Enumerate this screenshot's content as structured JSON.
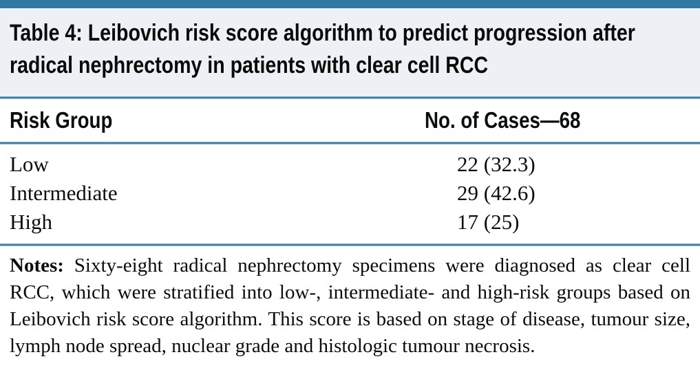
{
  "colors": {
    "top_bar": "#2e7aa2",
    "divider_rule": "#4080a6",
    "title_band_background": "#edf1f6",
    "text": "#0c0c0c"
  },
  "header": {
    "title": "Table 4:  Leibovich risk score algorithm to predict progression after radical nephrectomy in patients with clear cell RCC"
  },
  "table": {
    "columns": [
      {
        "label": "Risk Group"
      },
      {
        "label": "No. of Cases—68"
      }
    ],
    "rows": [
      {
        "risk_group": "Low",
        "cases": "22 (32.3)"
      },
      {
        "risk_group": "Intermediate",
        "cases": "29 (42.6)"
      },
      {
        "risk_group": "High",
        "cases": "17 (25)"
      }
    ]
  },
  "notes": {
    "label": "Notes:",
    "text": "Sixty-eight radical nephrectomy specimens were diagnosed as clear cell RCC, which were stratified into low-, intermediate- and high-risk groups based on Leibovich risk score algorithm. This score is based on stage of disease, tumour size, lymph node spread, nuclear grade and histologic tumour necrosis."
  },
  "chart_data": {
    "type": "table",
    "title": "Table 4: Leibovich risk score algorithm to predict progression after radical nephrectomy in patients with clear cell RCC",
    "columns": [
      "Risk Group",
      "No. of Cases—68"
    ],
    "rows": [
      [
        "Low",
        "22 (32.3)"
      ],
      [
        "Intermediate",
        "29 (42.6)"
      ],
      [
        "High",
        "17 (25)"
      ]
    ],
    "total_cases": 68,
    "values_format": "count (percent)"
  }
}
